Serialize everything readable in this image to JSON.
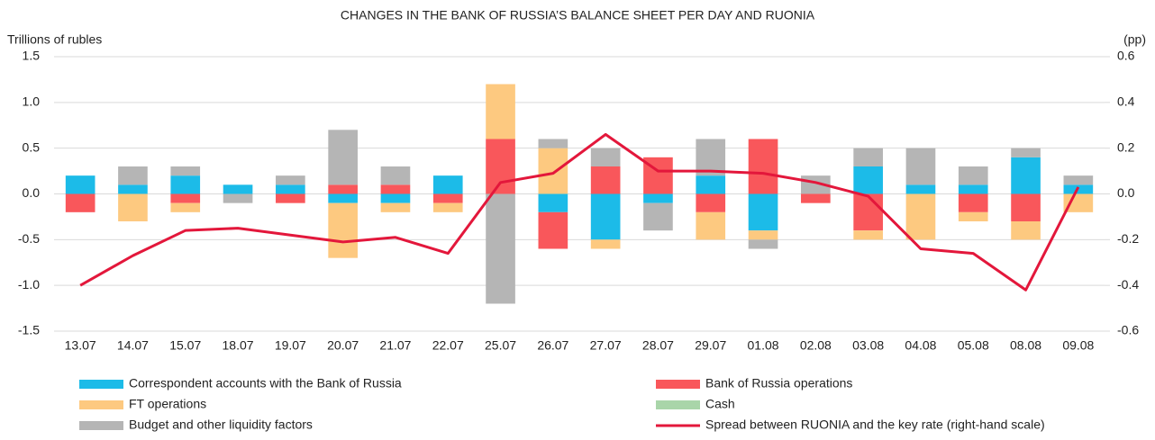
{
  "chart_data": {
    "type": "bar",
    "stacked": true,
    "title": "CHANGES IN THE BANK OF RUSSIA’S BALANCE SHEET PER DAY AND RUONIA",
    "y_label": "Trillions of rubles",
    "y2_label": "(pp)",
    "categories": [
      "13.07",
      "14.07",
      "15.07",
      "18.07",
      "19.07",
      "20.07",
      "21.07",
      "22.07",
      "25.07",
      "26.07",
      "27.07",
      "28.07",
      "29.07",
      "01.08",
      "02.08",
      "03.08",
      "04.08",
      "05.08",
      "08.08",
      "09.08"
    ],
    "ylim": [
      -1.5,
      1.5
    ],
    "yticks": [
      1.5,
      {
        "value": 1.0,
        "label": "1.0"
      },
      0.5,
      {
        "value": 0.0,
        "label": "0.0"
      },
      -0.5,
      {
        "value": -1.0,
        "label": "-1.0"
      },
      -1.5
    ],
    "y2lim": [
      -0.6,
      0.6
    ],
    "y2ticks": [
      0.6,
      0.4,
      0.2,
      {
        "value": 0.0,
        "label": "0.0"
      },
      -0.2,
      -0.4,
      -0.6
    ],
    "grid": true,
    "legend": "bottom",
    "series": [
      {
        "name": "Correspondent accounts with the Bank of Russia",
        "type": "bar",
        "color": "#1cbbe8",
        "values": [
          0.2,
          0.1,
          0.2,
          0.1,
          0.1,
          -0.1,
          -0.1,
          0.2,
          0,
          -0.2,
          -0.5,
          -0.1,
          0.2,
          -0.4,
          0,
          0.3,
          0.1,
          0.1,
          0.4,
          0.1
        ]
      },
      {
        "name": "Bank of Russia operations",
        "type": "bar",
        "color": "#f9575b",
        "values": [
          -0.2,
          0,
          -0.1,
          0,
          -0.1,
          0.1,
          0.1,
          -0.1,
          0.6,
          -0.4,
          0.3,
          0.4,
          -0.2,
          0.6,
          -0.1,
          -0.4,
          0,
          -0.2,
          -0.3,
          0
        ]
      },
      {
        "name": "FT operations",
        "type": "bar",
        "color": "#fdc980",
        "values": [
          0,
          -0.3,
          -0.1,
          0,
          0,
          -0.6,
          -0.1,
          -0.1,
          0.6,
          0.5,
          -0.1,
          0,
          -0.3,
          -0.1,
          0,
          -0.1,
          -0.5,
          -0.1,
          -0.2,
          -0.2
        ]
      },
      {
        "name": "Cash",
        "type": "bar",
        "color": "#a9d5a9",
        "values": [
          0,
          0,
          0,
          0,
          0,
          0,
          0,
          0,
          0,
          0,
          0,
          0,
          0,
          0,
          0,
          0,
          0,
          0,
          0,
          0
        ]
      },
      {
        "name": "Budget and other liquidity factors",
        "type": "bar",
        "color": "#b5b5b5",
        "values": [
          0,
          0.2,
          0.1,
          -0.1,
          0.1,
          0.6,
          0.2,
          0,
          -1.2,
          0.1,
          0.2,
          -0.3,
          0.4,
          -0.1,
          0.2,
          0.2,
          0.4,
          0.2,
          0.1,
          0.1
        ]
      },
      {
        "name": "Spread between RUONIA and the key rate (right-hand scale)",
        "type": "line",
        "axis": "y2",
        "color": "#e3173b",
        "values": [
          -0.4,
          -0.27,
          -0.16,
          -0.15,
          -0.18,
          -0.21,
          -0.19,
          -0.26,
          0.05,
          0.09,
          0.26,
          0.1,
          0.1,
          0.09,
          0.05,
          -0.01,
          -0.24,
          -0.26,
          -0.42,
          0.03
        ]
      }
    ]
  }
}
